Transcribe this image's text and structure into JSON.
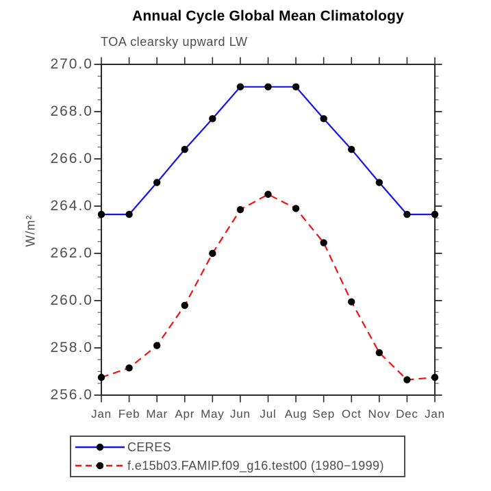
{
  "title": "Annual Cycle Global Mean Climatology",
  "subtitle": "TOA clearsky upward LW",
  "chart_data": {
    "type": "line",
    "title": "Annual Cycle Global Mean Climatology",
    "subtitle": "TOA clearsky upward LW",
    "xlabel": "",
    "ylabel": "W/m²",
    "categories": [
      "Jan",
      "Feb",
      "Mar",
      "Apr",
      "May",
      "Jun",
      "Jul",
      "Aug",
      "Sep",
      "Oct",
      "Nov",
      "Dec",
      "Jan"
    ],
    "ylim": [
      256.0,
      270.0
    ],
    "ytick_step": 2.0,
    "ytick_minor_step": 0.5,
    "ytick_labels": [
      "256.0",
      "258.0",
      "260.0",
      "262.0",
      "264.0",
      "266.0",
      "268.0",
      "270.0"
    ],
    "grid": false,
    "legend_position": "bottom-left-box",
    "marker": {
      "shape": "circle",
      "color": "#000000",
      "radius": 5.2
    },
    "series": [
      {
        "name": "CERES",
        "color": "#1212ee",
        "line_style": "solid",
        "values": [
          263.65,
          263.65,
          265.0,
          266.4,
          267.7,
          269.05,
          269.05,
          269.05,
          267.7,
          266.4,
          265.0,
          263.65,
          263.65
        ]
      },
      {
        "name": "f.e15b03.FAMIP.f09_g16.test00 (1980−1999)",
        "color": "#f01212",
        "line_style": "dashed",
        "values": [
          256.75,
          257.15,
          258.1,
          259.8,
          262.0,
          263.85,
          264.5,
          263.9,
          262.45,
          259.95,
          257.8,
          256.65,
          256.75
        ]
      }
    ]
  },
  "colors": {
    "axis": "#2a2a2a",
    "minor_tick": "#6b6b6b",
    "label_text": "#4d4d4d",
    "title_text": "#000000",
    "background": "#ffffff"
  }
}
